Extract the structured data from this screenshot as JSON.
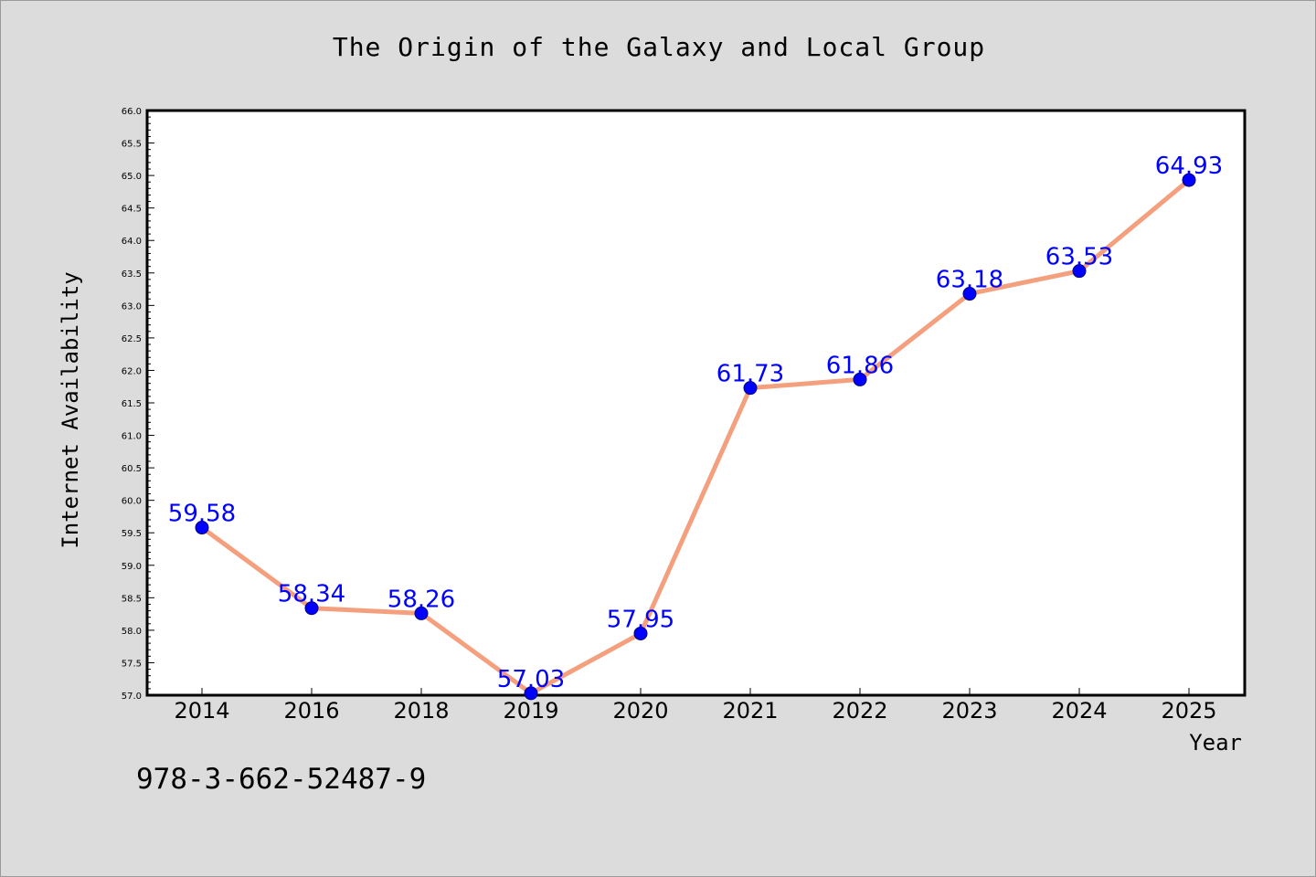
{
  "chart_data": {
    "type": "line",
    "title": "The Origin of the Galaxy and Local Group",
    "xlabel": "Year",
    "ylabel": "Internet Availability",
    "categories": [
      "2014",
      "2016",
      "2018",
      "2019",
      "2020",
      "2021",
      "2022",
      "2023",
      "2024",
      "2025"
    ],
    "series": [
      {
        "values": [
          59.58,
          58.34,
          58.26,
          57.03,
          57.95,
          61.73,
          61.86,
          63.18,
          63.53,
          64.93
        ],
        "labels": [
          "59.58",
          "58.34",
          "58.26",
          "57.03",
          "57.95",
          "61.73",
          "61.86",
          "63.18",
          "63.53",
          "64.93"
        ]
      }
    ],
    "ylim": [
      57.0,
      66.0
    ],
    "yticks": [
      "57.0",
      "57.5",
      "58.0",
      "58.5",
      "59.0",
      "59.5",
      "60.0",
      "60.5",
      "61.0",
      "61.5",
      "62.0",
      "62.5",
      "63.0",
      "63.5",
      "64.0",
      "64.5",
      "65.0",
      "65.5",
      "66.0"
    ],
    "grid": false,
    "line_color": "#f4a07e",
    "marker_color": "#0000ff",
    "label_color": "#0000ff"
  },
  "footer": {
    "isbn": "978-3-662-52487-9"
  }
}
